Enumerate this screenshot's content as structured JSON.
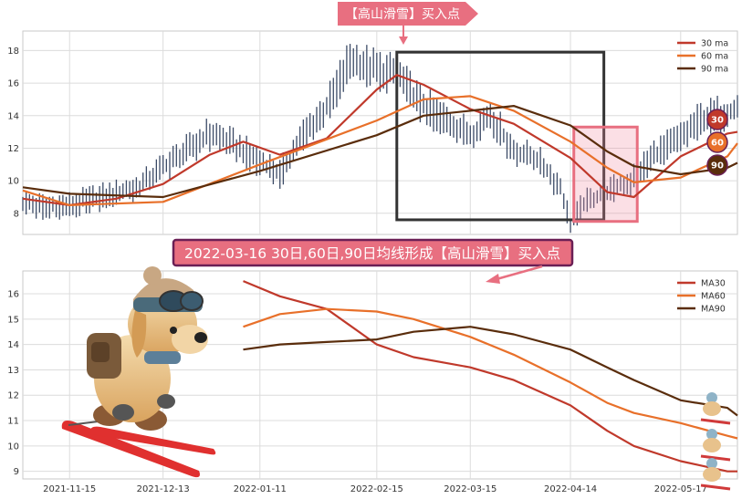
{
  "chart_data": [
    {
      "type": "line",
      "title": "【高山滑雪】买入点",
      "x_range": [
        "2021-11-01",
        "2022-06-03"
      ],
      "ylim": [
        6.7,
        19.2
      ],
      "y_ticks": [
        8,
        10,
        12,
        14,
        16,
        18
      ],
      "x_ticks": [
        "2021-11-15",
        "2021-12-13",
        "2022-01-11",
        "2022-02-15",
        "2022-03-15",
        "2022-04-14",
        "2022-05-17"
      ],
      "grid": true,
      "legend_position": "top-right",
      "price_series": {
        "x": [
          "2021-11-01",
          "2021-11-08",
          "2021-11-15",
          "2021-11-22",
          "2021-11-29",
          "2021-12-06",
          "2021-12-13",
          "2021-12-20",
          "2021-12-27",
          "2022-01-03",
          "2022-01-11",
          "2022-01-17",
          "2022-01-24",
          "2022-01-31",
          "2022-02-07",
          "2022-02-15",
          "2022-02-21",
          "2022-02-28",
          "2022-03-07",
          "2022-03-15",
          "2022-03-21",
          "2022-03-28",
          "2022-04-04",
          "2022-04-11",
          "2022-04-14",
          "2022-04-18",
          "2022-04-25",
          "2022-05-02",
          "2022-05-09",
          "2022-05-17",
          "2022-05-23",
          "2022-06-03"
        ],
        "y": [
          8.6,
          8.4,
          8.5,
          8.9,
          9.2,
          9.6,
          10.8,
          11.8,
          12.9,
          12.2,
          11.2,
          10.4,
          12.8,
          14.5,
          17.5,
          16.8,
          16.5,
          14.8,
          13.8,
          12.8,
          14.1,
          11.8,
          11.3,
          9.6,
          7.3,
          8.6,
          9.3,
          10.0,
          11.6,
          12.6,
          13.8,
          14.4
        ]
      },
      "series": [
        {
          "name": "30 ma",
          "color": "#c0392b",
          "x": [
            "2021-11-01",
            "2021-11-15",
            "2021-11-29",
            "2021-12-13",
            "2021-12-27",
            "2022-01-06",
            "2022-01-17",
            "2022-01-31",
            "2022-02-15",
            "2022-02-21",
            "2022-03-01",
            "2022-03-15",
            "2022-03-28",
            "2022-04-14",
            "2022-04-25",
            "2022-05-03",
            "2022-05-17",
            "2022-05-31",
            "2022-06-03"
          ],
          "y": [
            8.9,
            8.5,
            8.9,
            9.8,
            11.6,
            12.4,
            11.6,
            12.6,
            15.6,
            16.5,
            15.9,
            14.4,
            13.5,
            11.4,
            9.3,
            9.0,
            11.5,
            12.9,
            13.0
          ]
        },
        {
          "name": "60 ma",
          "color": "#e8702a",
          "x": [
            "2021-11-01",
            "2021-11-15",
            "2021-12-13",
            "2022-01-11",
            "2022-02-15",
            "2022-03-01",
            "2022-03-15",
            "2022-03-28",
            "2022-04-14",
            "2022-04-25",
            "2022-05-03",
            "2022-05-17",
            "2022-05-31",
            "2022-06-03"
          ],
          "y": [
            9.4,
            8.5,
            8.7,
            11.0,
            13.7,
            15.0,
            15.2,
            14.3,
            12.4,
            10.8,
            9.9,
            10.2,
            11.5,
            12.3
          ]
        },
        {
          "name": "90 ma",
          "color": "#5a2d0c",
          "x": [
            "2021-11-01",
            "2021-11-15",
            "2021-12-13",
            "2022-01-11",
            "2022-02-15",
            "2022-03-01",
            "2022-03-15",
            "2022-03-28",
            "2022-04-14",
            "2022-04-25",
            "2022-05-03",
            "2022-05-17",
            "2022-05-31",
            "2022-06-03"
          ],
          "y": [
            9.6,
            9.2,
            9.0,
            10.6,
            12.8,
            14.0,
            14.3,
            14.6,
            13.4,
            11.8,
            10.9,
            10.4,
            10.8,
            11.1
          ]
        }
      ],
      "end_badges": [
        "30",
        "60",
        "90"
      ],
      "highlight_boxes": [
        {
          "x_start": "2022-02-21",
          "x_end": "2022-04-24",
          "y_low": 7.6,
          "y_high": 17.9,
          "style": "dark-outline"
        },
        {
          "x_start": "2022-04-15",
          "x_end": "2022-05-04",
          "y_low": 7.5,
          "y_high": 13.3,
          "style": "pink-fill"
        }
      ]
    },
    {
      "type": "line",
      "title": "2022-03-16 30日,60日,90日均线形成【高山滑雪】买入点",
      "x_range": [
        "2021-11-01",
        "2022-06-03"
      ],
      "ylim": [
        8.7,
        16.9
      ],
      "y_ticks": [
        9,
        10,
        11,
        12,
        13,
        14,
        15,
        16
      ],
      "x_ticks": [
        "2021-11-15",
        "2021-12-13",
        "2022-01-11",
        "2022-02-15",
        "2022-03-15",
        "2022-04-14",
        "2022-05-17"
      ],
      "grid": true,
      "legend_position": "top-right",
      "series": [
        {
          "name": "MA30",
          "color": "#c0392b",
          "x": [
            "2022-01-06",
            "2022-01-17",
            "2022-01-31",
            "2022-02-15",
            "2022-02-26",
            "2022-03-15",
            "2022-03-28",
            "2022-04-14",
            "2022-04-25",
            "2022-05-03",
            "2022-05-17",
            "2022-05-31",
            "2022-06-03"
          ],
          "y": [
            16.5,
            15.9,
            15.4,
            14.0,
            13.5,
            13.1,
            12.6,
            11.6,
            10.6,
            10.0,
            9.4,
            9.0,
            9.0
          ]
        },
        {
          "name": "MA60",
          "color": "#e8702a",
          "x": [
            "2022-01-06",
            "2022-01-17",
            "2022-01-31",
            "2022-02-15",
            "2022-02-26",
            "2022-03-15",
            "2022-03-28",
            "2022-04-14",
            "2022-04-25",
            "2022-05-03",
            "2022-05-17",
            "2022-05-31",
            "2022-06-03"
          ],
          "y": [
            14.7,
            15.2,
            15.4,
            15.3,
            15.0,
            14.3,
            13.6,
            12.5,
            11.7,
            11.3,
            10.9,
            10.4,
            10.3
          ]
        },
        {
          "name": "MA90",
          "color": "#5a2d0c",
          "x": [
            "2022-01-06",
            "2022-01-17",
            "2022-01-31",
            "2022-02-15",
            "2022-02-26",
            "2022-03-15",
            "2022-03-28",
            "2022-04-14",
            "2022-04-25",
            "2022-05-03",
            "2022-05-17",
            "2022-05-31",
            "2022-06-03"
          ],
          "y": [
            13.8,
            14.0,
            14.1,
            14.2,
            14.5,
            14.7,
            14.4,
            13.8,
            13.1,
            12.6,
            11.8,
            11.5,
            11.2
          ]
        }
      ]
    }
  ]
}
